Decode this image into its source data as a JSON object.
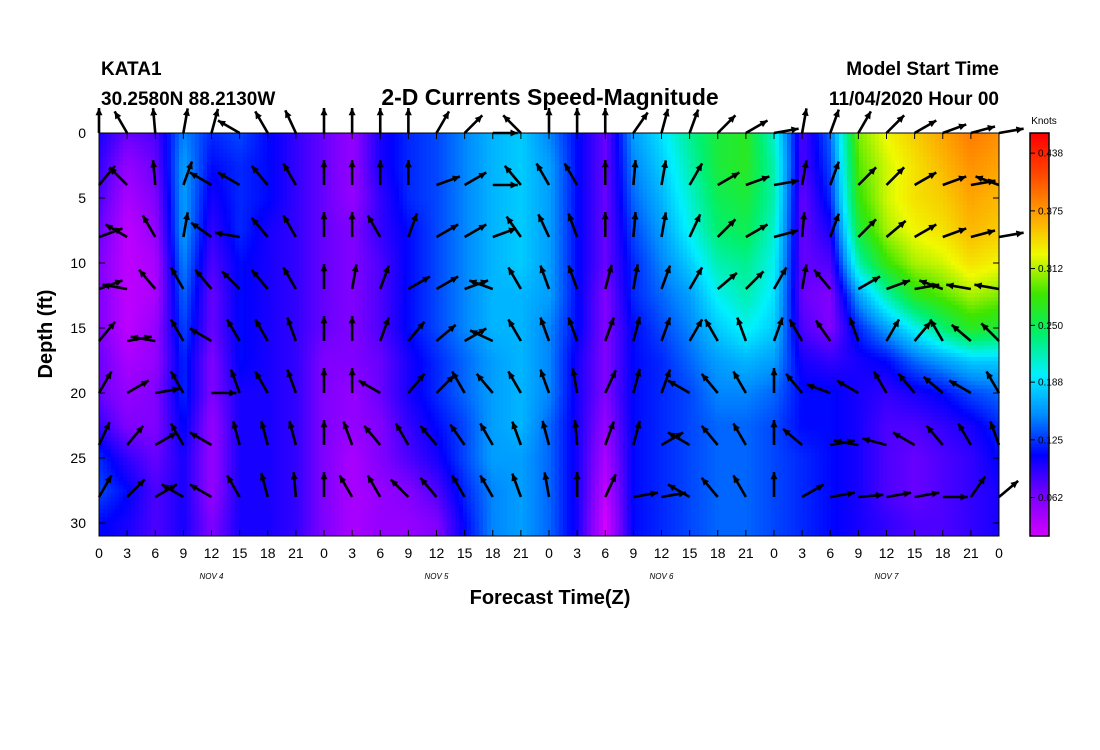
{
  "header": {
    "station": "KATA1",
    "location": "30.2580N 88.2130W",
    "title": "2-D Currents Speed-Magnitude",
    "model_label": "Model Start Time",
    "model_time": "11/04/2020 Hour 00"
  },
  "chart_data": {
    "type": "heatmap",
    "title": "2-D Currents Speed-Magnitude",
    "xlabel": "Forecast Time(Z)",
    "ylabel": "Depth (ft)",
    "x_tick_labels": [
      "0",
      "3",
      "6",
      "9",
      "12",
      "15",
      "18",
      "21",
      "0",
      "3",
      "6",
      "9",
      "12",
      "15",
      "18",
      "21",
      "0",
      "3",
      "6",
      "9",
      "12",
      "15",
      "18",
      "21",
      "0",
      "3",
      "6",
      "9",
      "12",
      "15",
      "18",
      "21",
      "0"
    ],
    "day_labels": [
      "NOV 4",
      "NOV 5",
      "NOV 6",
      "NOV 7"
    ],
    "x_range_hours": [
      0,
      96
    ],
    "ylim": [
      0,
      31
    ],
    "y_inverted": true,
    "y_ticks": [
      0,
      5,
      10,
      15,
      20,
      25,
      30
    ],
    "colorbar": {
      "label": "Knots",
      "ticks": [
        "0.438",
        "0.375",
        "0.312",
        "0.250",
        "0.188",
        "0.125",
        "0.062"
      ],
      "range": [
        0.02,
        0.46
      ]
    },
    "hours": [
      0,
      3,
      6,
      9,
      12,
      15,
      18,
      21,
      24,
      27,
      30,
      33,
      36,
      39,
      42,
      45,
      48,
      51,
      54,
      57,
      60,
      63,
      66,
      69,
      72,
      75,
      78,
      81,
      84,
      87,
      90,
      93,
      96
    ],
    "depths": [
      0,
      2.5,
      5,
      7.5,
      10,
      12.5,
      15,
      17.5,
      20,
      22.5,
      25,
      27.5,
      30,
      31
    ],
    "speed_knots": [
      [
        0.1,
        0.07,
        0.08,
        0.15,
        0.12,
        0.13,
        0.11,
        0.09,
        0.07,
        0.05,
        0.1,
        0.12,
        0.13,
        0.15,
        0.17,
        0.18,
        0.15,
        0.11,
        0.07,
        0.16,
        0.19,
        0.23,
        0.26,
        0.27,
        0.21,
        0.08,
        0.14,
        0.3,
        0.33,
        0.35,
        0.37,
        0.39,
        0.38
      ],
      [
        0.09,
        0.05,
        0.07,
        0.16,
        0.11,
        0.12,
        0.11,
        0.09,
        0.07,
        0.05,
        0.1,
        0.12,
        0.13,
        0.15,
        0.17,
        0.18,
        0.16,
        0.11,
        0.07,
        0.15,
        0.18,
        0.22,
        0.26,
        0.27,
        0.22,
        0.08,
        0.13,
        0.29,
        0.32,
        0.34,
        0.36,
        0.38,
        0.37
      ],
      [
        0.08,
        0.04,
        0.06,
        0.16,
        0.1,
        0.12,
        0.11,
        0.09,
        0.07,
        0.05,
        0.09,
        0.12,
        0.13,
        0.15,
        0.17,
        0.18,
        0.16,
        0.11,
        0.07,
        0.14,
        0.17,
        0.21,
        0.25,
        0.26,
        0.22,
        0.07,
        0.12,
        0.28,
        0.32,
        0.34,
        0.35,
        0.37,
        0.36
      ],
      [
        0.07,
        0.03,
        0.05,
        0.16,
        0.09,
        0.12,
        0.1,
        0.09,
        0.07,
        0.06,
        0.09,
        0.11,
        0.13,
        0.15,
        0.17,
        0.18,
        0.16,
        0.11,
        0.07,
        0.13,
        0.16,
        0.2,
        0.24,
        0.25,
        0.21,
        0.07,
        0.1,
        0.26,
        0.31,
        0.33,
        0.34,
        0.36,
        0.35
      ],
      [
        0.06,
        0.03,
        0.04,
        0.15,
        0.08,
        0.11,
        0.1,
        0.09,
        0.07,
        0.06,
        0.08,
        0.11,
        0.13,
        0.15,
        0.17,
        0.18,
        0.16,
        0.11,
        0.07,
        0.12,
        0.15,
        0.18,
        0.22,
        0.23,
        0.2,
        0.07,
        0.08,
        0.22,
        0.28,
        0.31,
        0.32,
        0.34,
        0.33
      ],
      [
        0.06,
        0.03,
        0.04,
        0.14,
        0.07,
        0.11,
        0.1,
        0.09,
        0.07,
        0.06,
        0.08,
        0.11,
        0.13,
        0.15,
        0.17,
        0.17,
        0.16,
        0.11,
        0.06,
        0.12,
        0.14,
        0.16,
        0.2,
        0.22,
        0.19,
        0.07,
        0.06,
        0.16,
        0.22,
        0.27,
        0.29,
        0.31,
        0.3
      ],
      [
        0.06,
        0.03,
        0.05,
        0.13,
        0.07,
        0.11,
        0.1,
        0.09,
        0.07,
        0.06,
        0.08,
        0.11,
        0.13,
        0.15,
        0.17,
        0.17,
        0.15,
        0.11,
        0.06,
        0.11,
        0.13,
        0.15,
        0.18,
        0.2,
        0.18,
        0.08,
        0.06,
        0.12,
        0.16,
        0.2,
        0.24,
        0.27,
        0.26
      ],
      [
        0.07,
        0.04,
        0.05,
        0.12,
        0.06,
        0.11,
        0.1,
        0.09,
        0.06,
        0.06,
        0.07,
        0.1,
        0.12,
        0.14,
        0.16,
        0.17,
        0.15,
        0.1,
        0.06,
        0.11,
        0.12,
        0.14,
        0.16,
        0.17,
        0.16,
        0.1,
        0.09,
        0.1,
        0.11,
        0.14,
        0.16,
        0.18,
        0.18
      ],
      [
        0.07,
        0.05,
        0.06,
        0.12,
        0.06,
        0.1,
        0.1,
        0.09,
        0.06,
        0.05,
        0.07,
        0.1,
        0.12,
        0.14,
        0.16,
        0.17,
        0.15,
        0.1,
        0.06,
        0.11,
        0.12,
        0.13,
        0.15,
        0.15,
        0.14,
        0.11,
        0.11,
        0.1,
        0.09,
        0.1,
        0.11,
        0.13,
        0.14
      ],
      [
        0.09,
        0.06,
        0.06,
        0.11,
        0.05,
        0.1,
        0.1,
        0.09,
        0.06,
        0.05,
        0.06,
        0.09,
        0.11,
        0.13,
        0.16,
        0.17,
        0.14,
        0.1,
        0.05,
        0.11,
        0.12,
        0.13,
        0.14,
        0.14,
        0.13,
        0.11,
        0.11,
        0.1,
        0.08,
        0.08,
        0.09,
        0.1,
        0.12
      ],
      [
        0.12,
        0.09,
        0.07,
        0.1,
        0.05,
        0.1,
        0.1,
        0.09,
        0.06,
        0.04,
        0.06,
        0.08,
        0.1,
        0.13,
        0.16,
        0.16,
        0.14,
        0.1,
        0.04,
        0.11,
        0.12,
        0.13,
        0.14,
        0.14,
        0.13,
        0.12,
        0.11,
        0.1,
        0.08,
        0.07,
        0.08,
        0.09,
        0.11
      ],
      [
        0.13,
        0.11,
        0.08,
        0.1,
        0.05,
        0.1,
        0.1,
        0.09,
        0.06,
        0.04,
        0.05,
        0.06,
        0.08,
        0.12,
        0.15,
        0.16,
        0.14,
        0.1,
        0.03,
        0.11,
        0.12,
        0.13,
        0.14,
        0.14,
        0.13,
        0.12,
        0.11,
        0.1,
        0.08,
        0.07,
        0.08,
        0.09,
        0.1
      ],
      [
        0.11,
        0.1,
        0.08,
        0.1,
        0.06,
        0.1,
        0.1,
        0.09,
        0.06,
        0.04,
        0.05,
        0.05,
        0.06,
        0.11,
        0.15,
        0.16,
        0.14,
        0.1,
        0.02,
        0.11,
        0.12,
        0.13,
        0.14,
        0.14,
        0.13,
        0.12,
        0.11,
        0.1,
        0.09,
        0.08,
        0.08,
        0.09,
        0.1
      ],
      [
        0.11,
        0.1,
        0.08,
        0.1,
        0.06,
        0.1,
        0.1,
        0.09,
        0.06,
        0.04,
        0.05,
        0.05,
        0.06,
        0.11,
        0.15,
        0.16,
        0.14,
        0.1,
        0.02,
        0.11,
        0.12,
        0.13,
        0.14,
        0.14,
        0.13,
        0.12,
        0.11,
        0.1,
        0.09,
        0.08,
        0.08,
        0.09,
        0.1
      ]
    ],
    "vector_hours": [
      0,
      3,
      6,
      9,
      12,
      15,
      18,
      21,
      24,
      27,
      30,
      33,
      36,
      39,
      42,
      45,
      48,
      51,
      54,
      57,
      60,
      63,
      66,
      69,
      72,
      75,
      78,
      81,
      84,
      87,
      90,
      93,
      96
    ],
    "vector_depths": [
      0,
      4,
      8,
      12,
      16,
      20,
      24,
      28
    ],
    "vector_direction_deg": [
      [
        0,
        330,
        355,
        10,
        15,
        300,
        330,
        335,
        0,
        0,
        0,
        0,
        30,
        45,
        90,
        315,
        0,
        0,
        0,
        35,
        15,
        20,
        45,
        60,
        80,
        10,
        20,
        30,
        45,
        60,
        70,
        75,
        80
      ],
      [
        40,
        315,
        355,
        20,
        300,
        300,
        320,
        330,
        0,
        0,
        0,
        0,
        70,
        60,
        90,
        320,
        330,
        330,
        0,
        5,
        10,
        30,
        60,
        70,
        80,
        10,
        20,
        45,
        45,
        60,
        70,
        80,
        290
      ],
      [
        70,
        300,
        330,
        10,
        305,
        280,
        320,
        330,
        0,
        0,
        330,
        20,
        60,
        60,
        70,
        325,
        335,
        340,
        0,
        5,
        10,
        25,
        45,
        60,
        75,
        5,
        20,
        45,
        50,
        60,
        70,
        75,
        80
      ],
      [
        70,
        280,
        320,
        330,
        320,
        315,
        320,
        330,
        0,
        10,
        20,
        60,
        60,
        70,
        290,
        330,
        340,
        340,
        15,
        10,
        20,
        30,
        50,
        45,
        30,
        10,
        320,
        60,
        70,
        80,
        290,
        280,
        280
      ],
      [
        40,
        80,
        280,
        330,
        300,
        330,
        330,
        340,
        0,
        0,
        20,
        40,
        50,
        60,
        295,
        330,
        340,
        340,
        20,
        15,
        20,
        30,
        330,
        340,
        20,
        330,
        325,
        340,
        30,
        40,
        330,
        310,
        315
      ],
      [
        30,
        60,
        80,
        330,
        90,
        340,
        330,
        340,
        0,
        0,
        300,
        40,
        45,
        330,
        320,
        330,
        340,
        350,
        25,
        15,
        20,
        300,
        320,
        330,
        0,
        320,
        290,
        300,
        330,
        320,
        310,
        300,
        330
      ],
      [
        25,
        40,
        60,
        330,
        300,
        345,
        345,
        345,
        0,
        340,
        320,
        330,
        320,
        325,
        330,
        340,
        345,
        355,
        20,
        15,
        60,
        300,
        320,
        330,
        0,
        310,
        80,
        280,
        285,
        300,
        320,
        330,
        340
      ],
      [
        30,
        45,
        60,
        300,
        300,
        330,
        345,
        355,
        0,
        330,
        330,
        315,
        320,
        330,
        330,
        340,
        350,
        0,
        25,
        80,
        80,
        300,
        320,
        330,
        0,
        60,
        80,
        85,
        80,
        80,
        90,
        35,
        50
      ]
    ]
  }
}
